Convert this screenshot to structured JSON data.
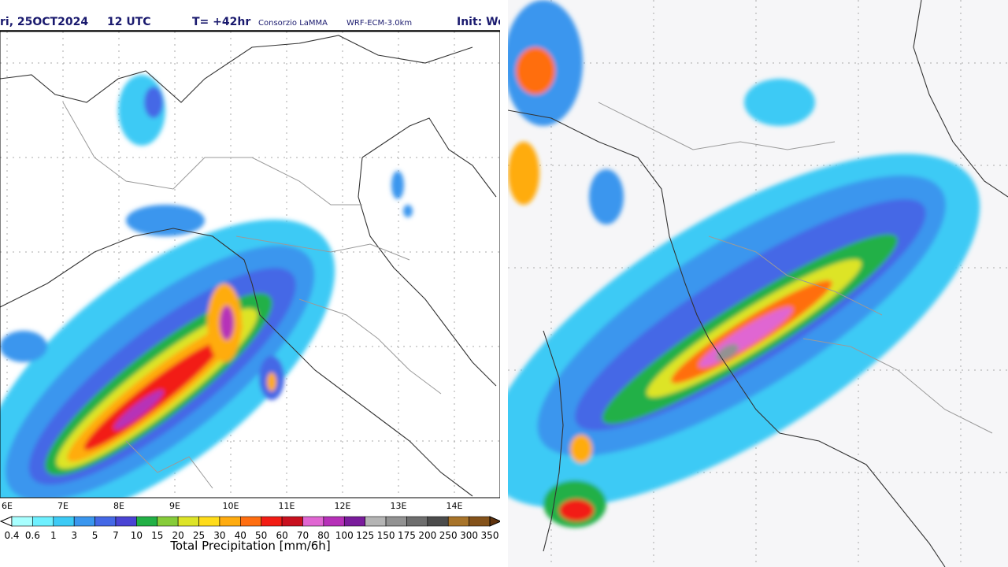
{
  "left_panel": {
    "header": {
      "date": "ri, 25OCT2024",
      "time": "12 UTC",
      "forecast_hour": "T= +42hr",
      "agency": "Consorzio LaMMA",
      "model": "WRF-ECM-3.0km",
      "init": "Init: We"
    },
    "longitude_labels": [
      "6E",
      "7E",
      "8E",
      "9E",
      "10E",
      "11E",
      "12E",
      "13E",
      "14E"
    ],
    "colorbar": {
      "title": "Total Precipitation [mm/6h]",
      "bins": [
        {
          "label": "0.4",
          "color": "#a8ffff"
        },
        {
          "label": "0.6",
          "color": "#6ef0ff"
        },
        {
          "label": "1",
          "color": "#3ccaf5"
        },
        {
          "label": "3",
          "color": "#3a96ee"
        },
        {
          "label": "5",
          "color": "#4468e6"
        },
        {
          "label": "7",
          "color": "#4a44d4"
        },
        {
          "label": "10",
          "color": "#22b046"
        },
        {
          "label": "15",
          "color": "#86cc3a"
        },
        {
          "label": "20",
          "color": "#dde428"
        },
        {
          "label": "25",
          "color": "#ffdc1a"
        },
        {
          "label": "30",
          "color": "#ffac10"
        },
        {
          "label": "40",
          "color": "#ff6e10"
        },
        {
          "label": "50",
          "color": "#f21c14"
        },
        {
          "label": "60",
          "color": "#c8101e"
        },
        {
          "label": "70",
          "color": "#e066d2"
        },
        {
          "label": "80",
          "color": "#b630b8"
        },
        {
          "label": "100",
          "color": "#7a1c9c"
        },
        {
          "label": "125",
          "color": "#b4b4b4"
        },
        {
          "label": "150",
          "color": "#929292"
        },
        {
          "label": "175",
          "color": "#6e6e6e"
        },
        {
          "label": "200",
          "color": "#4c4c4c"
        },
        {
          "label": "250",
          "color": "#a8742a"
        },
        {
          "label": "300",
          "color": "#84521a"
        },
        {
          "label": "350",
          "color": "#60330e"
        }
      ]
    }
  }
}
